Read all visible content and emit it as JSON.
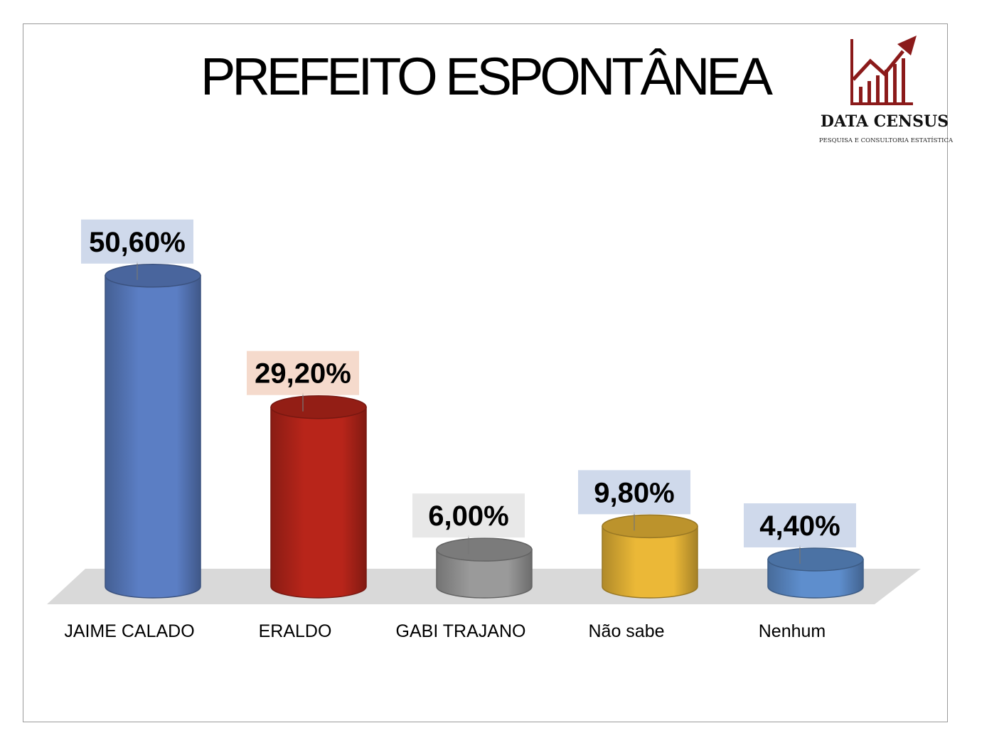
{
  "logo": {
    "name": "DATA CENSUS",
    "tagline": "PESQUISA E CONSULTORIA ESTATÍSTICA",
    "color": "#8B1A1A"
  },
  "chart_data": {
    "type": "bar",
    "title": "PREFEITO ESPONTÂNEA",
    "categories": [
      "JAIME CALADO",
      "ERALDO",
      "GABI TRAJANO",
      "Não sabe",
      "Nenhum"
    ],
    "values": [
      50.6,
      29.2,
      6.0,
      9.8,
      4.4
    ],
    "value_labels": [
      "50,60%",
      "29,20%",
      "6,00%",
      "9,80%",
      "4,40%"
    ],
    "colors": [
      "#5B7EC4",
      "#B8251A",
      "#9A9A9A",
      "#EBB837",
      "#5E8ECD"
    ],
    "label_box_colors": [
      "#C7D2E8",
      "#F3D3C3",
      "#E4E4E4",
      "#C7D2E8",
      "#C7D2E8"
    ],
    "xlabel": "",
    "ylabel": "",
    "ylim": [
      0,
      60
    ],
    "grid": false,
    "legend": "none",
    "style": "3d-cylinder"
  }
}
